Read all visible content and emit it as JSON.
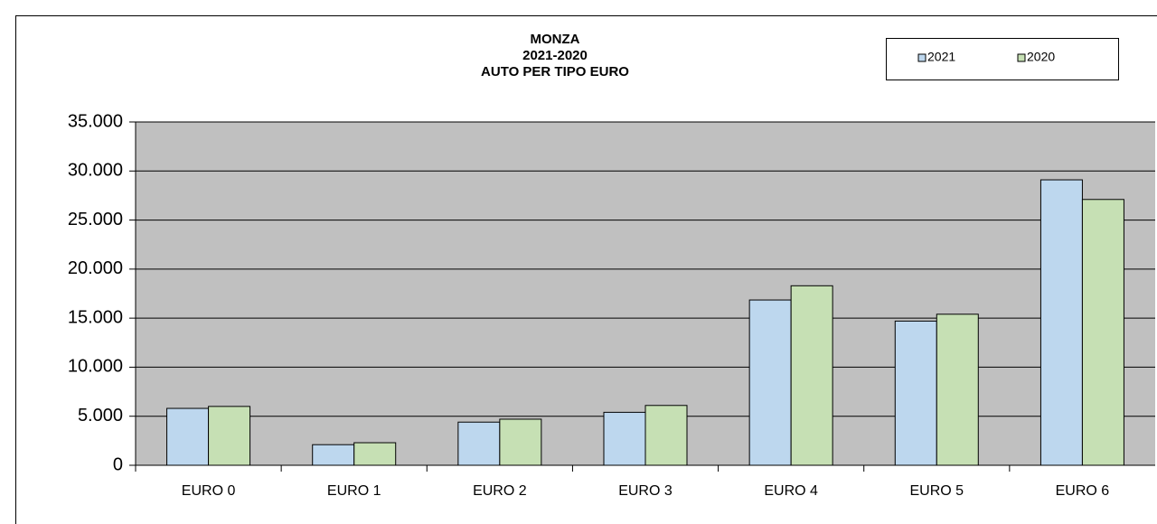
{
  "chart_data": {
    "type": "bar",
    "title": [
      "MONZA",
      "2021-2020",
      "AUTO PER TIPO EURO"
    ],
    "categories": [
      "EURO 0",
      "EURO 1",
      "EURO 2",
      "EURO 3",
      "EURO 4",
      "EURO 5",
      "EURO 6"
    ],
    "series": [
      {
        "name": "2021",
        "color": "#bdd7ee",
        "values": [
          5800,
          2100,
          4400,
          5400,
          16850,
          14700,
          29100
        ]
      },
      {
        "name": "2020",
        "color": "#c6e0b4",
        "values": [
          6000,
          2300,
          4700,
          6100,
          18300,
          15400,
          27100
        ]
      }
    ],
    "ylim": [
      0,
      35000
    ],
    "yticks": [
      0,
      {
        "value": 5000,
        "label": "5.000"
      },
      {
        "value": 10000,
        "label": "10.000"
      },
      {
        "value": 15000,
        "label": "15.000"
      },
      {
        "value": 20000,
        "label": "20.000"
      },
      {
        "value": 25000,
        "label": "25.000"
      },
      {
        "value": 30000,
        "label": "30.000"
      },
      {
        "value": 35000,
        "label": "35.000"
      }
    ],
    "grid": true,
    "plot_background": "#c0c0c0",
    "legend": "top-right"
  }
}
